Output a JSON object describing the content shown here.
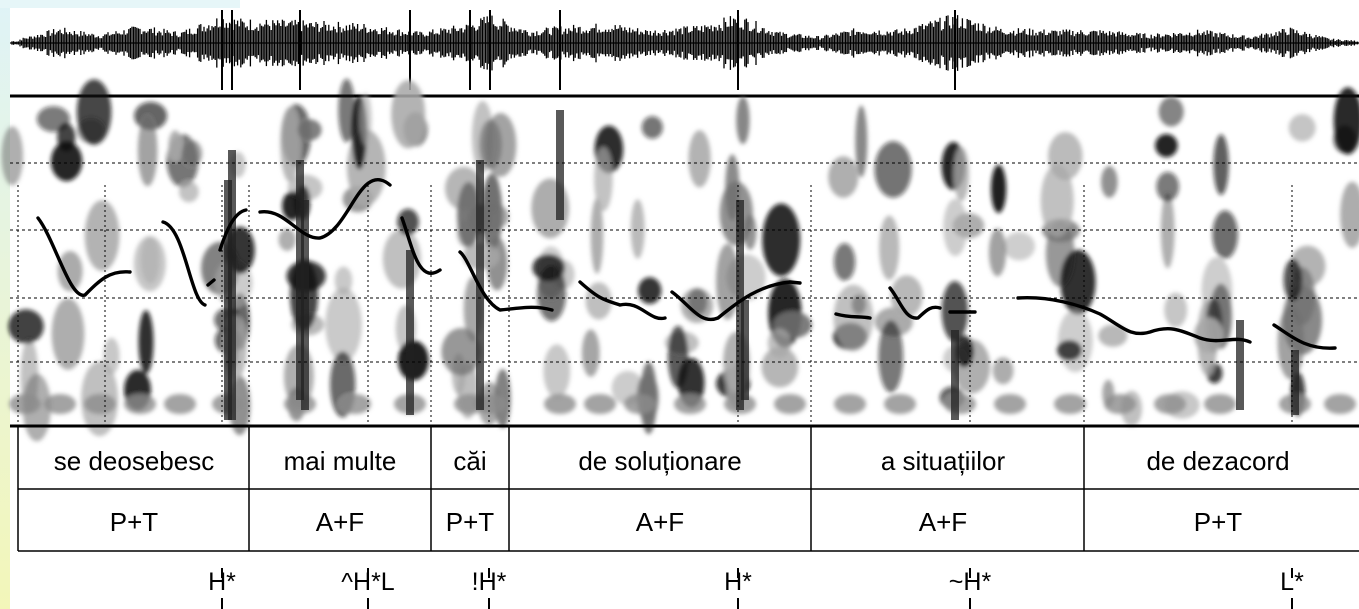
{
  "colors": {
    "page_background": "#ffffff",
    "left_margin_gradient_top": "#dff3f7",
    "left_margin_gradient_bottom": "#f3f6b9",
    "ink": "#000000",
    "spectrogram_dark": "#111111",
    "spectrogram_mid": "#6e6e6e",
    "spectrogram_light": "#a8a8a8",
    "pitch_track": "#000000"
  },
  "words": [
    "se deosebesc",
    "mai multe",
    "căi",
    "de soluționare",
    "a situațiilor",
    "de dezacord"
  ],
  "units": [
    "P+T",
    "A+F",
    "P+T",
    "A+F",
    "A+F",
    "P+T"
  ],
  "accents": [
    "H*",
    "^H*L",
    "!H*",
    "H*",
    "~H*",
    "L*"
  ]
}
